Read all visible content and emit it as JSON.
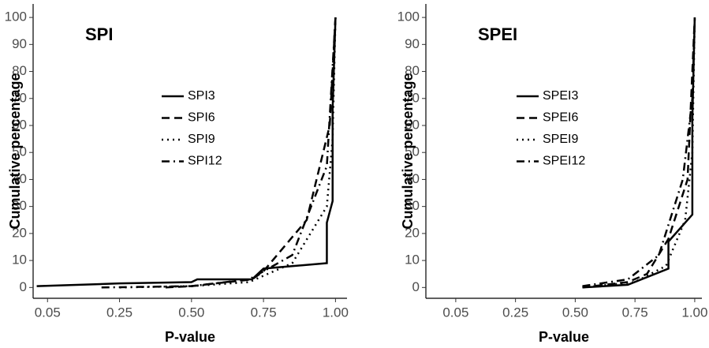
{
  "chart_data": [
    {
      "type": "line",
      "title": "SPI",
      "xlabel": "P-value",
      "ylabel": "Cumulative percentage",
      "xlim": [
        0.01,
        1.04
      ],
      "xticks": [
        0.05,
        0.25,
        {
          "value": 0.5,
          "label": "0.50"
        },
        0.75,
        {
          "value": 1,
          "label": "1.00"
        }
      ],
      "ylim": [
        -4,
        105
      ],
      "yticks": [
        0,
        10,
        20,
        30,
        40,
        50,
        60,
        70,
        80,
        90,
        100
      ],
      "grid": false,
      "series": [
        {
          "name": "SPI3",
          "color": "#000000",
          "linestyle": "solid",
          "x": [
            0.02,
            0.25,
            0.5,
            0.52,
            0.71,
            0.75,
            0.97,
            0.97,
            0.99,
            0.99,
            1.0
          ],
          "values": [
            0.5,
            1.5,
            2,
            3,
            3,
            7,
            9,
            24,
            32,
            66,
            100
          ]
        },
        {
          "name": "SPI6",
          "color": "#000000",
          "linestyle": "dashed",
          "x": [
            0.41,
            0.5,
            0.71,
            0.75,
            0.9,
            0.98,
            1.0
          ],
          "values": [
            0,
            0.5,
            3,
            6,
            25,
            60,
            100
          ]
        },
        {
          "name": "SPI9",
          "color": "#000000",
          "linestyle": "dotted",
          "x": [
            0.25,
            0.5,
            0.7,
            0.85,
            0.97,
            0.99,
            1.0
          ],
          "values": [
            0,
            0.5,
            2,
            9,
            30,
            55,
            100
          ]
        },
        {
          "name": "SPI12",
          "color": "#000000",
          "linestyle": "dashdot",
          "x": [
            0.2,
            0.5,
            0.7,
            0.85,
            0.97,
            1.0
          ],
          "values": [
            0,
            0.5,
            3,
            12,
            45,
            100
          ]
        }
      ]
    },
    {
      "type": "line",
      "title": "SPEI",
      "xlabel": "P-value",
      "ylabel": "Cumulative percentage",
      "xlim": [
        -0.05,
        1.03
      ],
      "xticks": [
        0.05,
        0.25,
        {
          "value": 0.5,
          "label": "0.50"
        },
        0.75,
        {
          "value": 1,
          "label": "1.00"
        }
      ],
      "ylim": [
        -4,
        105
      ],
      "yticks": [
        0,
        10,
        20,
        30,
        40,
        50,
        60,
        70,
        80,
        90,
        100
      ],
      "grid": false,
      "series": [
        {
          "name": "SPEI3",
          "color": "#000000",
          "linestyle": "solid",
          "x": [
            0.53,
            0.72,
            0.89,
            0.89,
            0.99,
            0.99,
            1.0
          ],
          "values": [
            0,
            1,
            7,
            17,
            27,
            62,
            100
          ]
        },
        {
          "name": "SPEI6",
          "color": "#000000",
          "linestyle": "dashed",
          "x": [
            0.53,
            0.72,
            0.8,
            0.89,
            0.97,
            1.0
          ],
          "values": [
            0,
            2,
            5,
            18,
            40,
            100
          ]
        },
        {
          "name": "SPEI9",
          "color": "#000000",
          "linestyle": "dotted",
          "x": [
            0.53,
            0.75,
            0.88,
            0.96,
            0.99,
            1.0
          ],
          "values": [
            0,
            2,
            8,
            25,
            50,
            100
          ]
        },
        {
          "name": "SPEI12",
          "color": "#000000",
          "linestyle": "dashdot",
          "x": [
            0.53,
            0.72,
            0.85,
            0.95,
            0.99,
            1.0
          ],
          "values": [
            0.5,
            3,
            12,
            40,
            70,
            100
          ]
        }
      ]
    }
  ]
}
